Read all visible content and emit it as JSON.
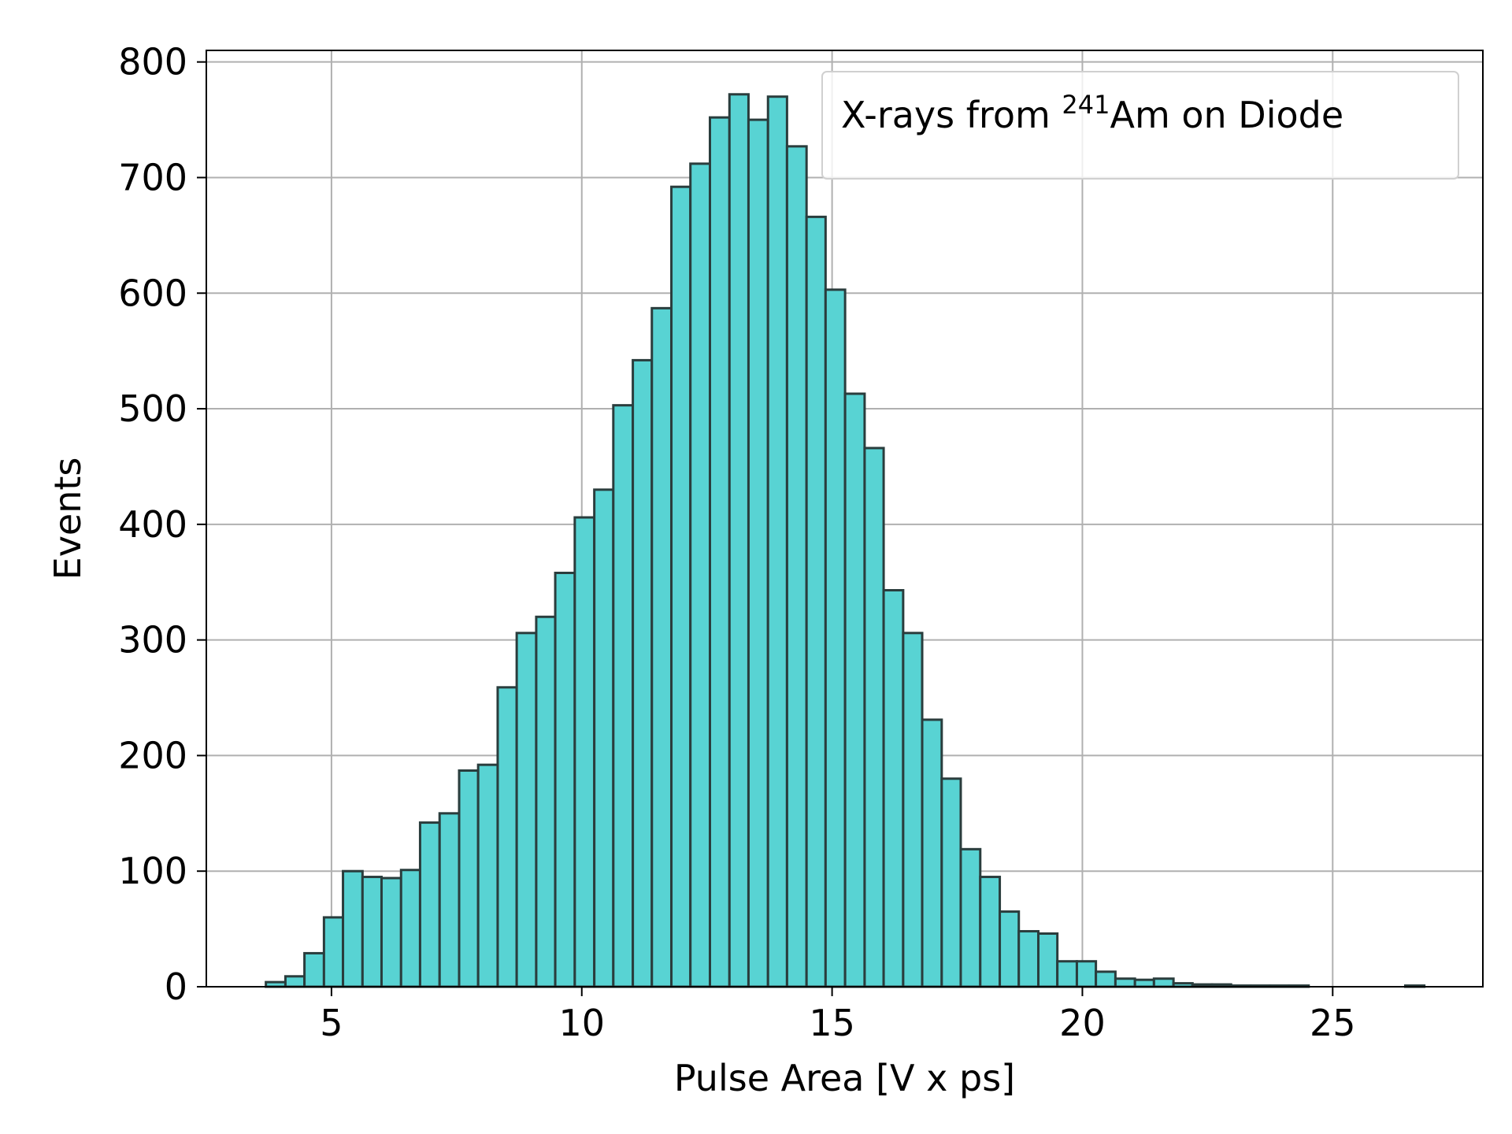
{
  "chart_data": {
    "type": "bar",
    "title": "",
    "xlabel": "Pulse Area [V x ps]",
    "ylabel": "Events",
    "xlim": [
      2.5,
      28
    ],
    "ylim": [
      0,
      800
    ],
    "xticks": [
      5,
      10,
      15,
      20,
      25
    ],
    "yticks": [
      0,
      100,
      200,
      300,
      400,
      500,
      600,
      700,
      800
    ],
    "grid": true,
    "legend_position": "top-right",
    "legend": {
      "text_before": "X-rays from ",
      "superscript": "241",
      "text_after": "Am on Diode"
    },
    "bar_color": "#58d3d3",
    "edge_color": "#2a3d3d",
    "bin_edges": [
      3.69,
      4.08,
      4.46,
      4.85,
      5.23,
      5.62,
      6.0,
      6.39,
      6.77,
      7.16,
      7.55,
      7.93,
      8.32,
      8.7,
      9.09,
      9.47,
      9.86,
      10.25,
      10.63,
      11.02,
      11.4,
      11.79,
      12.17,
      12.56,
      12.95,
      13.33,
      13.72,
      14.1,
      14.49,
      14.87,
      15.26,
      15.65,
      16.03,
      16.42,
      16.8,
      17.19,
      17.57,
      17.96,
      18.35,
      18.73,
      19.12,
      19.5,
      19.89,
      20.27,
      20.66,
      21.05,
      21.43,
      21.82,
      22.2,
      22.59,
      22.97,
      23.36,
      23.75,
      24.13,
      24.52,
      24.9,
      25.29,
      25.67,
      26.06,
      26.45,
      26.83
    ],
    "values": [
      4,
      9,
      29,
      60,
      100,
      95,
      94,
      101,
      142,
      150,
      187,
      192,
      259,
      306,
      320,
      358,
      406,
      430,
      503,
      542,
      587,
      692,
      712,
      752,
      772,
      750,
      770,
      727,
      666,
      603,
      513,
      466,
      343,
      306,
      231,
      180,
      119,
      95,
      65,
      48,
      46,
      22,
      22,
      13,
      7,
      6,
      7,
      3,
      2,
      2,
      1,
      1,
      1,
      1,
      0,
      0,
      0,
      0,
      0,
      1
    ]
  }
}
